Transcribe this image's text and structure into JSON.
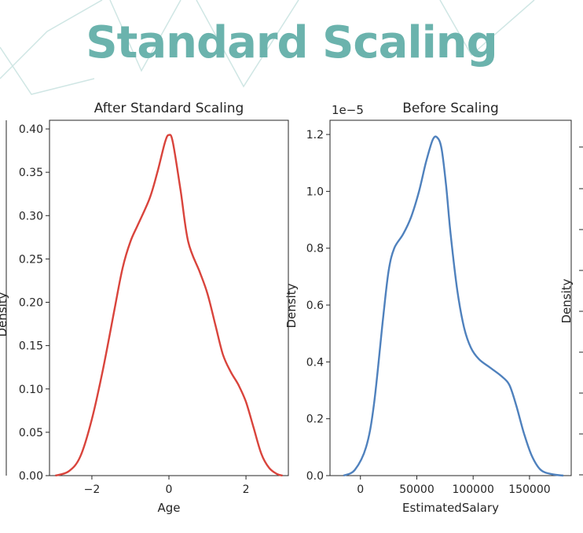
{
  "page": {
    "title": "Standard Scaling",
    "title_color": "#6bb3ad",
    "decor_color": "#cfe6e4"
  },
  "chart_data": [
    {
      "type": "line",
      "title": "After Standard Scaling",
      "xlabel": "Age",
      "ylabel": "Density",
      "color": "#d9443c",
      "xlim": [
        -3.1,
        3.1
      ],
      "ylim": [
        0,
        0.41
      ],
      "x_ticks": [
        -2,
        0,
        2
      ],
      "x_tick_labels": [
        "−2",
        "0",
        "2"
      ],
      "y_ticks": [
        0,
        0.05,
        0.1,
        0.15,
        0.2,
        0.25,
        0.3,
        0.35,
        0.4
      ],
      "y_tick_labels": [
        "0.00",
        "0.05",
        "0.10",
        "0.15",
        "0.20",
        "0.25",
        "0.30",
        "0.35",
        "0.40"
      ],
      "series": [
        {
          "x": [
            -2.95,
            -2.6,
            -2.3,
            -2.0,
            -1.7,
            -1.4,
            -1.2,
            -1.0,
            -0.8,
            -0.5,
            -0.3,
            -0.1,
            0.0,
            0.1,
            0.3,
            0.5,
            0.8,
            1.0,
            1.2,
            1.4,
            1.6,
            1.8,
            2.0,
            2.2,
            2.4,
            2.6,
            2.8,
            2.95
          ],
          "y": [
            0.0,
            0.005,
            0.022,
            0.065,
            0.125,
            0.195,
            0.24,
            0.27,
            0.29,
            0.32,
            0.35,
            0.385,
            0.393,
            0.385,
            0.33,
            0.27,
            0.235,
            0.21,
            0.175,
            0.14,
            0.12,
            0.105,
            0.085,
            0.055,
            0.025,
            0.009,
            0.002,
            0.0
          ]
        }
      ]
    },
    {
      "type": "line",
      "title": "Before Scaling",
      "offset_label": "1e−5",
      "xlabel": "EstimatedSalary",
      "ylabel": "Density",
      "color": "#4f81bd",
      "xlim": [
        -27000,
        187000
      ],
      "ylim": [
        0,
        1.25
      ],
      "x_ticks": [
        0,
        50000,
        100000,
        150000
      ],
      "x_tick_labels": [
        "0",
        "50000",
        "100000",
        "150000"
      ],
      "y_ticks": [
        0,
        0.2,
        0.4,
        0.6,
        0.8,
        1.0,
        1.2
      ],
      "y_tick_labels": [
        "0.0",
        "0.2",
        "0.4",
        "0.6",
        "0.8",
        "1.0",
        "1.2"
      ],
      "series": [
        {
          "x": [
            -15000,
            -5000,
            5000,
            12000,
            20000,
            25000,
            30000,
            38000,
            45000,
            52000,
            58000,
            64000,
            68000,
            72000,
            76000,
            80000,
            86000,
            92000,
            98000,
            105000,
            115000,
            125000,
            132000,
            138000,
            145000,
            152000,
            160000,
            170000,
            180000
          ],
          "y": [
            0.0,
            0.02,
            0.1,
            0.25,
            0.55,
            0.72,
            0.8,
            0.85,
            0.91,
            1.0,
            1.1,
            1.18,
            1.19,
            1.15,
            1.02,
            0.85,
            0.65,
            0.52,
            0.45,
            0.41,
            0.38,
            0.35,
            0.32,
            0.25,
            0.15,
            0.07,
            0.02,
            0.005,
            0.0
          ]
        }
      ]
    }
  ],
  "partial_left": {
    "ylabel": "Density"
  },
  "partial_right": {
    "ylabel": "Density"
  }
}
